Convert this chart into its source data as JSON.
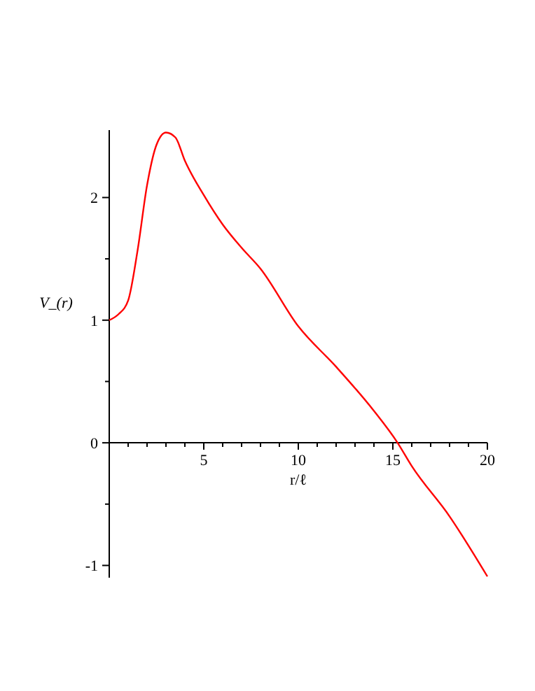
{
  "chart_data": {
    "type": "line",
    "xlabel": "r/ℓ",
    "ylabel": "V_(r)",
    "xlim": [
      0,
      20
    ],
    "ylim": [
      -1.1,
      2.55
    ],
    "xticks": [
      {
        "value": 1,
        "label": null
      },
      {
        "value": 2,
        "label": null
      },
      {
        "value": 3,
        "label": null
      },
      {
        "value": 4,
        "label": null
      },
      5,
      {
        "value": 6,
        "label": null
      },
      {
        "value": 7,
        "label": null
      },
      {
        "value": 8,
        "label": null
      },
      {
        "value": 9,
        "label": null
      },
      10,
      {
        "value": 11,
        "label": null
      },
      {
        "value": 12,
        "label": null
      },
      {
        "value": 13,
        "label": null
      },
      {
        "value": 14,
        "label": null
      },
      15,
      {
        "value": 16,
        "label": null
      },
      {
        "value": 17,
        "label": null
      },
      {
        "value": 18,
        "label": null
      },
      {
        "value": 19,
        "label": null
      },
      20
    ],
    "yticks": [
      -1,
      {
        "value": -0.5,
        "label": null
      },
      0,
      {
        "value": 0.5,
        "label": null
      },
      1,
      {
        "value": 1.5,
        "label": null
      },
      2
    ],
    "grid": false,
    "marker": "none",
    "line_style": "solid",
    "series": [
      {
        "color": "#ff0000",
        "x": [
          0,
          0.5,
          1,
          1.5,
          2,
          2.5,
          3,
          3.5,
          4,
          5,
          6,
          7,
          8,
          10,
          12,
          14,
          15.25,
          16,
          18,
          20
        ],
        "values": [
          1,
          1.05,
          1.16,
          1.57,
          2.1,
          2.43,
          2.53,
          2.49,
          2.3,
          2.02,
          1.78,
          1.59,
          1.42,
          0.95,
          0.62,
          0.26,
          0,
          -0.19,
          -0.6,
          -1.09
        ]
      }
    ]
  }
}
